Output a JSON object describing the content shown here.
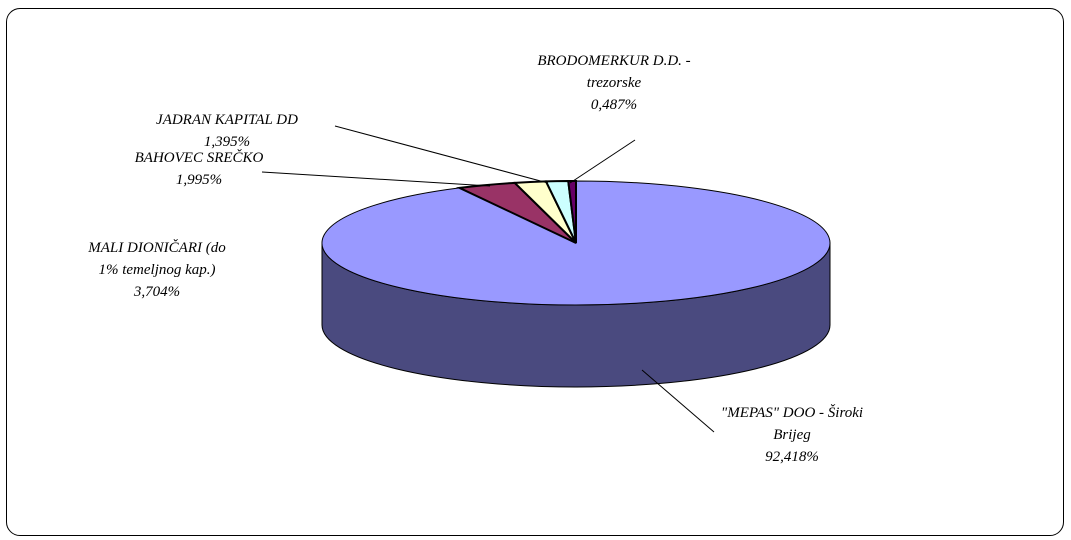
{
  "chart_data": {
    "type": "pie",
    "title": "",
    "three_d": true,
    "slices": [
      {
        "name": "\"MEPAS\" DOO - Široki Brijeg",
        "label_lines": [
          "\"MEPAS\" DOO - Široki",
          "Brijeg",
          "92,418%"
        ],
        "value": 92.418,
        "color": "#9999ff",
        "side_color": "#4a4a7f"
      },
      {
        "name": "MALI DIONIČARI (do 1% temeljnog kap.)",
        "label_lines": [
          "MALI DIONIČARI  (do",
          "1% temeljnog kap.)",
          "3,704%"
        ],
        "value": 3.704,
        "color": "#993366",
        "side_color": "#4d1a33"
      },
      {
        "name": "BAHOVEC SREČKO",
        "label_lines": [
          "BAHOVEC SREČKO",
          "1,995%"
        ],
        "value": 1.995,
        "color": "#ffffcc",
        "side_color": "#808066"
      },
      {
        "name": "JADRAN KAPITAL DD",
        "label_lines": [
          "JADRAN KAPITAL DD",
          "1,395%"
        ],
        "value": 1.395,
        "color": "#ccffff",
        "side_color": "#668080"
      },
      {
        "name": "BRODOMERKUR D.D. - trezorske",
        "label_lines": [
          "BRODOMERKUR D.D. -",
          "trezorske",
          "0,487%"
        ],
        "value": 0.487,
        "color": "#660066",
        "side_color": "#330033"
      }
    ]
  }
}
